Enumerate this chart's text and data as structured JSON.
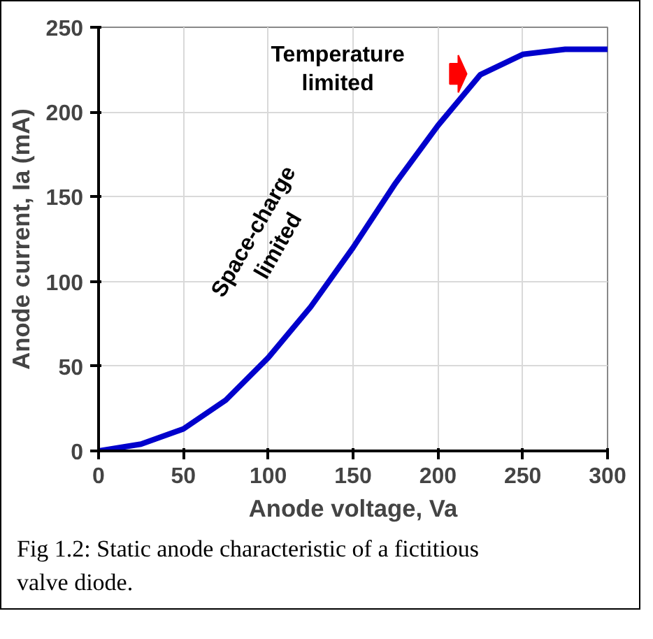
{
  "chart_data": {
    "type": "line",
    "xlabel": "Anode voltage, Va",
    "ylabel": "Anode current, Ia (mA)",
    "x": [
      0,
      25,
      50,
      75,
      100,
      125,
      150,
      175,
      200,
      215,
      225,
      250,
      275,
      300
    ],
    "series": [
      {
        "color": "#0000cc",
        "values": [
          0,
          4,
          13,
          30,
          55,
          85,
          120,
          158,
          192,
          210,
          222,
          234,
          237,
          237
        ]
      }
    ],
    "xlim": [
      0,
      300
    ],
    "ylim": [
      0,
      250
    ],
    "xticks": [
      0,
      50,
      100,
      150,
      200,
      250,
      300
    ],
    "yticks": [
      0,
      50,
      100,
      150,
      200,
      250
    ],
    "grid": true,
    "line_style": "solid",
    "annotations": [
      "Temperature\nlimited",
      "Space-charge\nlimited",
      "Fig 1.2: Static anode characteristic of a fictitious valve diode."
    ]
  }
}
